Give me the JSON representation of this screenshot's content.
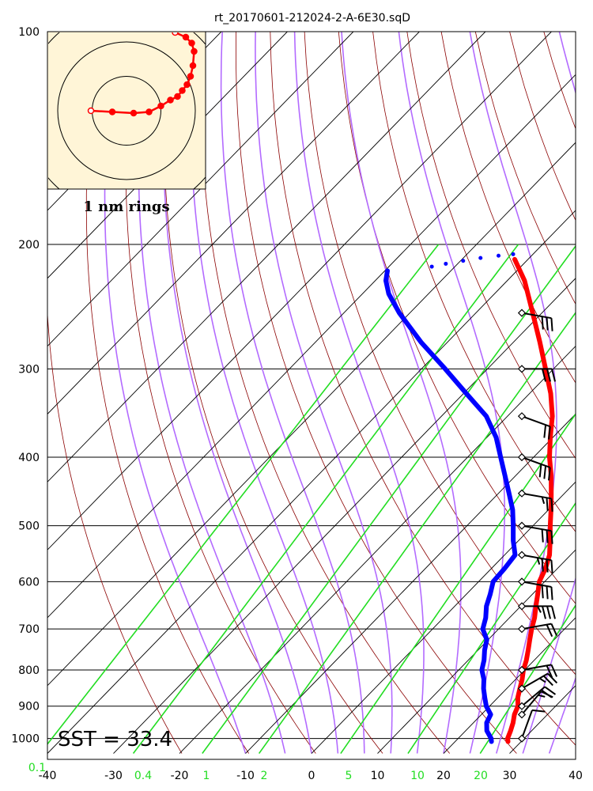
{
  "chart_data": {
    "type": "skew-t",
    "title": "rt_20170601-212024-2-A-6E30.sqD",
    "pressure_ticks": [
      "100",
      "200",
      "300",
      "400",
      "500",
      "600",
      "700",
      "800",
      "900",
      "1000"
    ],
    "temperature_ticks": [
      "-40",
      "-30",
      "-20",
      "-10",
      "0",
      "10",
      "20",
      "30",
      "40"
    ],
    "mixing_ratio_labels": [
      "0.1",
      "0.4",
      "1",
      "2",
      "5",
      "10",
      "20"
    ],
    "xlim": [
      -40,
      40
    ],
    "ylim": [
      1050,
      100
    ],
    "sst_label": "SST = 33.4",
    "hodograph_label": "1 nm rings",
    "colors": {
      "temperature": "#ff0000",
      "dewpoint": "#0000ff",
      "dry_adiabat": "#8b0000",
      "moist_adiabat": "#b36bff",
      "mixing_ratio": "#22dd22",
      "isotherm": "#000000",
      "hodo_bg": "#fff5d7"
    },
    "temperature_profile": [
      [
        1010,
        28.0
      ],
      [
        1000,
        27.5
      ],
      [
        975,
        26.8
      ],
      [
        950,
        26.0
      ],
      [
        925,
        25.0
      ],
      [
        900,
        24.3
      ],
      [
        875,
        23.0
      ],
      [
        850,
        22.0
      ],
      [
        825,
        21.0
      ],
      [
        800,
        19.8
      ],
      [
        775,
        18.8
      ],
      [
        750,
        17.6
      ],
      [
        725,
        16.3
      ],
      [
        700,
        15.0
      ],
      [
        675,
        13.8
      ],
      [
        650,
        12.3
      ],
      [
        625,
        10.8
      ],
      [
        600,
        9.2
      ],
      [
        575,
        8.2
      ],
      [
        550,
        6.8
      ],
      [
        525,
        4.8
      ],
      [
        500,
        2.6
      ],
      [
        475,
        0.4
      ],
      [
        450,
        -2.0
      ],
      [
        425,
        -4.6
      ],
      [
        400,
        -7.6
      ],
      [
        375,
        -10.4
      ],
      [
        350,
        -13.2
      ],
      [
        325,
        -16.8
      ],
      [
        300,
        -21.2
      ],
      [
        275,
        -26.0
      ],
      [
        250,
        -31.4
      ],
      [
        225,
        -37.4
      ],
      [
        210,
        -42.0
      ]
    ],
    "dewpoint_profile": [
      [
        1010,
        25.5
      ],
      [
        1000,
        25.0
      ],
      [
        975,
        23.2
      ],
      [
        950,
        22.0
      ],
      [
        925,
        21.4
      ],
      [
        900,
        19.5
      ],
      [
        875,
        18.0
      ],
      [
        850,
        16.5
      ],
      [
        825,
        15.2
      ],
      [
        800,
        13.5
      ],
      [
        775,
        12.4
      ],
      [
        750,
        11.0
      ],
      [
        725,
        9.8
      ],
      [
        700,
        7.6
      ],
      [
        675,
        6.4
      ],
      [
        650,
        4.8
      ],
      [
        625,
        3.6
      ],
      [
        600,
        2.2
      ],
      [
        575,
        2.0
      ],
      [
        550,
        1.6
      ],
      [
        525,
        -0.8
      ],
      [
        500,
        -3.0
      ],
      [
        475,
        -5.4
      ],
      [
        450,
        -8.4
      ],
      [
        425,
        -11.6
      ],
      [
        400,
        -15.0
      ],
      [
        375,
        -18.6
      ],
      [
        350,
        -23.2
      ],
      [
        325,
        -29.6
      ],
      [
        300,
        -36.4
      ],
      [
        275,
        -44.0
      ],
      [
        250,
        -51.6
      ],
      [
        235,
        -56.0
      ],
      [
        225,
        -58.4
      ],
      [
        218,
        -59.6
      ]
    ],
    "dewpoint_upper_dots": [
      [
        215,
        -53.5
      ],
      [
        213,
        -51.8
      ],
      [
        211,
        -49.6
      ],
      [
        209,
        -47.4
      ],
      [
        207.5,
        -45.0
      ],
      [
        206.5,
        -43.0
      ]
    ],
    "hodograph": {
      "rings": 2,
      "points": [
        [
          -1.5,
          0
        ],
        [
          -0.6,
          -0.05
        ],
        [
          0.3,
          -0.1
        ],
        [
          0.95,
          -0.05
        ],
        [
          1.45,
          0.2
        ],
        [
          1.85,
          0.45
        ],
        [
          2.15,
          0.6
        ],
        [
          2.35,
          0.85
        ],
        [
          2.55,
          1.1
        ],
        [
          2.7,
          1.45
        ],
        [
          2.8,
          1.9
        ],
        [
          2.85,
          2.5
        ],
        [
          2.75,
          2.85
        ],
        [
          2.5,
          3.1
        ],
        [
          2.05,
          3.3
        ]
      ]
    },
    "wind_barbs": [
      {
        "p": 1000,
        "dir": 20,
        "speed": 10
      },
      {
        "p": 925,
        "dir": 40,
        "speed": 15
      },
      {
        "p": 900,
        "dir": 50,
        "speed": 20
      },
      {
        "p": 850,
        "dir": 60,
        "speed": 25
      },
      {
        "p": 800,
        "dir": 80,
        "speed": 20
      },
      {
        "p": 700,
        "dir": 80,
        "speed": 20
      },
      {
        "p": 650,
        "dir": 90,
        "speed": 35
      },
      {
        "p": 600,
        "dir": 100,
        "speed": 30
      },
      {
        "p": 550,
        "dir": 100,
        "speed": 35
      },
      {
        "p": 500,
        "dir": 100,
        "speed": 30
      },
      {
        "p": 450,
        "dir": 100,
        "speed": 25
      },
      {
        "p": 400,
        "dir": 110,
        "speed": 30
      },
      {
        "p": 350,
        "dir": 110,
        "speed": 20
      },
      {
        "p": 300,
        "dir": 90,
        "speed": 30
      },
      {
        "p": 250,
        "dir": 100,
        "speed": 30
      }
    ]
  }
}
